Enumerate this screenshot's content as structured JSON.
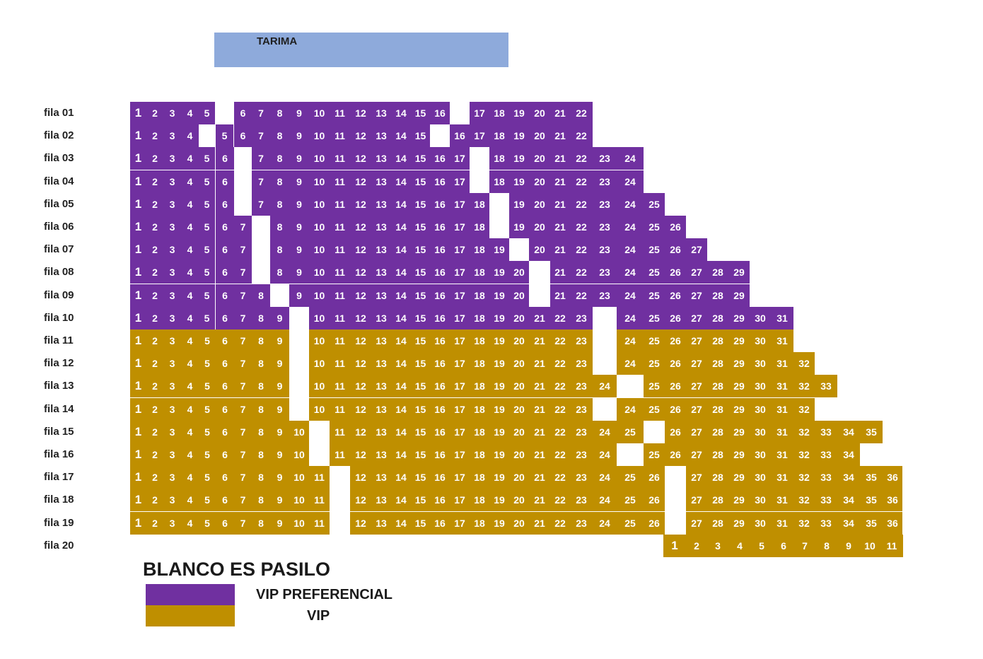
{
  "stage": {
    "label": "TARIMA"
  },
  "aisle_note": "BLANCO ES PASILO",
  "legend": [
    {
      "label": "VIP PREFERENCIAL",
      "color": "#7030a0"
    },
    {
      "label": "VIP",
      "color": "#bf8f00"
    }
  ],
  "colors": {
    "vip_preferencial": "#7030a0",
    "vip": "#bf8f00",
    "stage": "#8eaadb",
    "aisle": "#ffffff"
  },
  "rows": [
    {
      "label": "fila 01",
      "category": "vip_preferencial",
      "seats": 22
    },
    {
      "label": "fila 02",
      "category": "vip_preferencial",
      "seats": 22
    },
    {
      "label": "fila 03",
      "category": "vip_preferencial",
      "seats": 24
    },
    {
      "label": "fila 04",
      "category": "vip_preferencial",
      "seats": 24
    },
    {
      "label": "fila 05",
      "category": "vip_preferencial",
      "seats": 25
    },
    {
      "label": "fila 06",
      "category": "vip_preferencial",
      "seats": 26
    },
    {
      "label": "fila 07",
      "category": "vip_preferencial",
      "seats": 27
    },
    {
      "label": "fila 08",
      "category": "vip_preferencial",
      "seats": 29
    },
    {
      "label": "fila 09",
      "category": "vip_preferencial",
      "seats": 29
    },
    {
      "label": "fila 10",
      "category": "vip_preferencial",
      "seats": 31
    },
    {
      "label": "fila 11",
      "category": "vip",
      "seats": 31
    },
    {
      "label": "fila 12",
      "category": "vip",
      "seats": 32
    },
    {
      "label": "fila 13",
      "category": "vip",
      "seats": 33
    },
    {
      "label": "fila 14",
      "category": "vip",
      "seats": 32
    },
    {
      "label": "fila 15",
      "category": "vip",
      "seats": 35
    },
    {
      "label": "fila 16",
      "category": "vip",
      "seats": 34
    },
    {
      "label": "fila 17",
      "category": "vip",
      "seats": 36
    },
    {
      "label": "fila 18",
      "category": "vip",
      "seats": 36
    },
    {
      "label": "fila 19",
      "category": "vip",
      "seats": 36
    },
    {
      "label": "fila 20",
      "category": "vip",
      "seats": 11
    }
  ]
}
